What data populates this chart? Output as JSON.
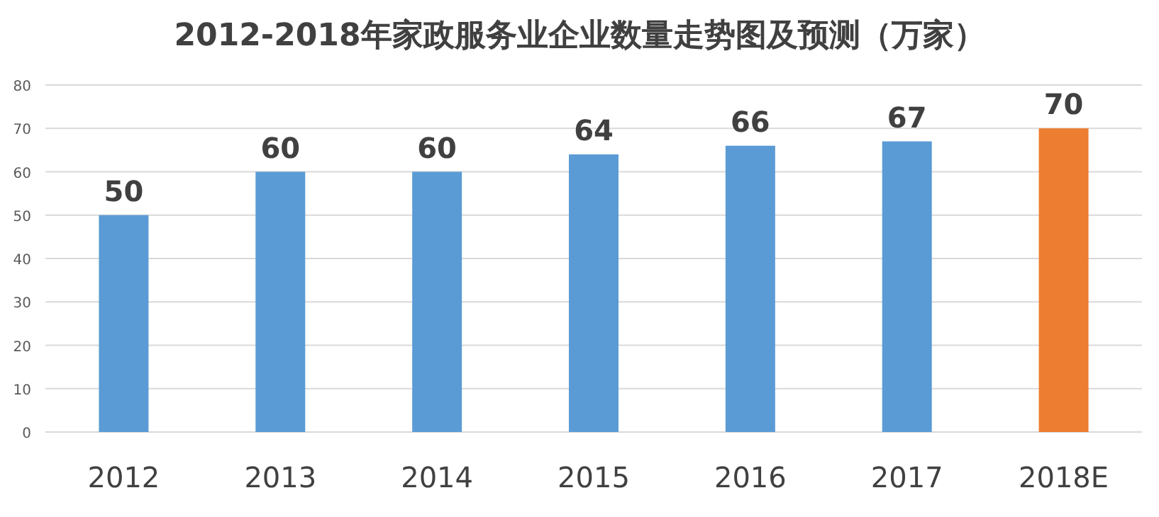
{
  "chart_data": {
    "type": "bar",
    "title": "2012-2018年家政服务业企业数量走势图及预测（万家）",
    "categories": [
      "2012",
      "2013",
      "2014",
      "2015",
      "2016",
      "2017",
      "2018E"
    ],
    "values": [
      50,
      60,
      60,
      64,
      66,
      67,
      70
    ],
    "colors": [
      "#5b9bd5",
      "#5b9bd5",
      "#5b9bd5",
      "#5b9bd5",
      "#5b9bd5",
      "#5b9bd5",
      "#ed7d31"
    ],
    "ylim": [
      0,
      80
    ],
    "yticks": [
      0,
      10,
      20,
      30,
      40,
      50,
      60,
      70,
      80
    ],
    "grid": "y",
    "data_labels": true
  }
}
